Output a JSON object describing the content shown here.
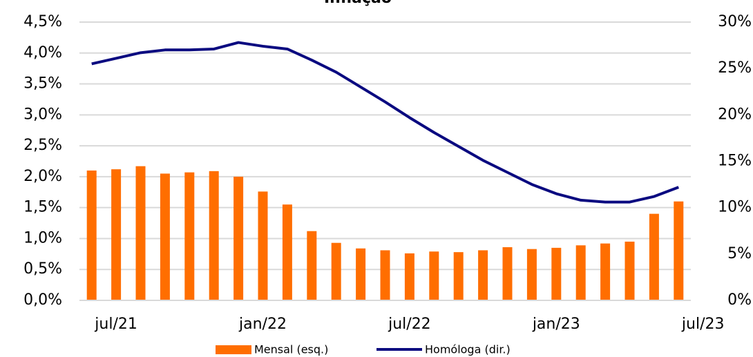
{
  "chart_data": {
    "type": "bar_line",
    "title": "Inflação",
    "categories": [
      null,
      "jul/21",
      null,
      null,
      null,
      null,
      null,
      "jan/22",
      null,
      null,
      null,
      null,
      null,
      "jul/22",
      null,
      null,
      null,
      null,
      null,
      "jan/23",
      null,
      null,
      null,
      null,
      null,
      "jul/23"
    ],
    "series": [
      {
        "name": "Mensal (esq.)",
        "color": "#ff6e00",
        "type": "bar",
        "values": [
          2.1,
          2.12,
          2.17,
          2.05,
          2.07,
          2.09,
          2.0,
          1.76,
          1.55,
          1.12,
          0.93,
          0.84,
          0.81,
          0.76,
          0.79,
          0.78,
          0.81,
          0.86,
          0.83,
          0.85,
          0.89,
          0.92,
          0.95,
          1.4,
          1.6,
          null
        ]
      },
      {
        "name": "Homóloga (dir.)",
        "color": "#0a0a80",
        "type": "line",
        "axis": "y2",
        "values": [
          25.5,
          26.1,
          26.7,
          27.0,
          27.0,
          27.1,
          27.8,
          27.4,
          27.1,
          25.9,
          24.6,
          23.0,
          21.4,
          19.7,
          18.1,
          16.6,
          15.1,
          13.8,
          12.5,
          11.5,
          10.8,
          10.6,
          10.6,
          11.2,
          12.2,
          null
        ]
      }
    ],
    "ylim": [
      0,
      4.5
    ],
    "yticks": [
      {
        "value": 0,
        "label": "0,0%"
      },
      {
        "value": 0.5,
        "label": "0,5%"
      },
      {
        "value": 1,
        "label": "1,0%"
      },
      {
        "value": 1.5,
        "label": "1,5%"
      },
      {
        "value": 2,
        "label": "2,0%"
      },
      {
        "value": 2.5,
        "label": "2,5%"
      },
      {
        "value": 3,
        "label": "3,0%"
      },
      {
        "value": 3.5,
        "label": "3,5%"
      },
      {
        "value": 4,
        "label": "4,0%"
      },
      {
        "value": 4.5,
        "label": "4,5%"
      }
    ],
    "y2lim": [
      0,
      30
    ],
    "y2ticks": [
      {
        "value": 0,
        "label": "0%"
      },
      {
        "value": 5,
        "label": "5%"
      },
      {
        "value": 10,
        "label": "10%"
      },
      {
        "value": 15,
        "label": "15%"
      },
      {
        "value": 20,
        "label": "20%"
      },
      {
        "value": 25,
        "label": "25%"
      },
      {
        "value": 30,
        "label": "30%"
      }
    ],
    "grid": true
  }
}
